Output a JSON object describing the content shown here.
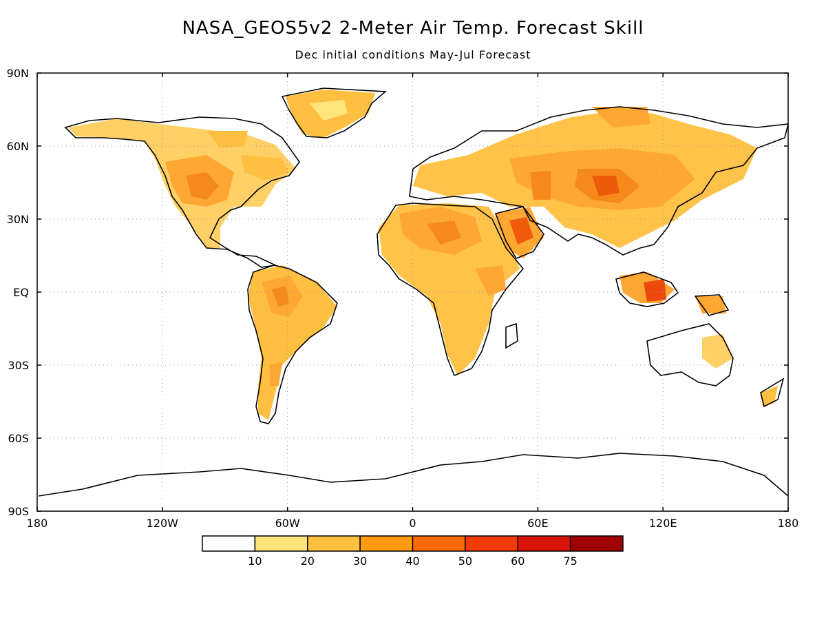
{
  "title": "NASA_GEOS5v2 2-Meter Air Temp. Forecast Skill",
  "subtitle": "Dec initial conditions   May-Jul Forecast",
  "map": {
    "projection": "cylindrical equidistant",
    "lon_range": [
      -180,
      180
    ],
    "lat_range": [
      -90,
      90
    ],
    "grid": "dotted",
    "lon_ticks": [
      {
        "value": -180,
        "label": "180"
      },
      {
        "value": -120,
        "label": "120W"
      },
      {
        "value": -60,
        "label": "60W"
      },
      {
        "value": 0,
        "label": "0"
      },
      {
        "value": 60,
        "label": "60E"
      },
      {
        "value": 120,
        "label": "120E"
      },
      {
        "value": 180,
        "label": "180"
      }
    ],
    "lat_ticks": [
      {
        "value": 90,
        "label": "90N"
      },
      {
        "value": 60,
        "label": "60N"
      },
      {
        "value": 30,
        "label": "30N"
      },
      {
        "value": 0,
        "label": "EQ"
      },
      {
        "value": -30,
        "label": "30S"
      },
      {
        "value": -60,
        "label": "60S"
      },
      {
        "value": -90,
        "label": "90S"
      }
    ]
  },
  "colorbar": {
    "colors": [
      "#ffffff",
      "#ffe57a",
      "#ffbf40",
      "#ff9b10",
      "#ff6a00",
      "#f53a0a",
      "#d81508",
      "#a00000"
    ],
    "labels": [
      "10",
      "20",
      "30",
      "40",
      "50",
      "60",
      "75"
    ]
  }
}
